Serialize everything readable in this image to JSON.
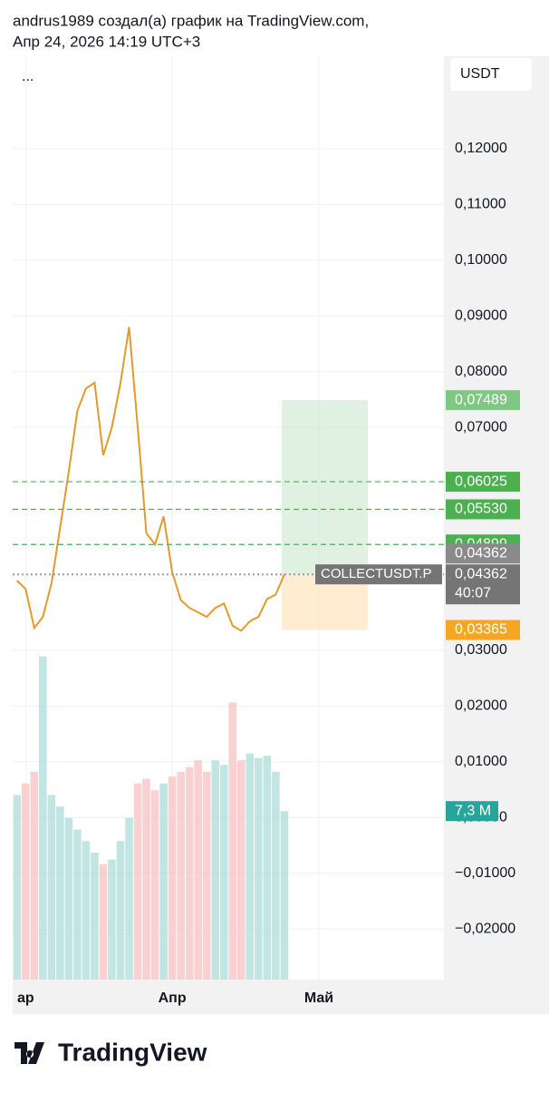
{
  "header": {
    "author_line": "andrus1989 создал(а) график на TradingView.com,",
    "date_line": "Апр 24, 2026 14:19 UTC+3"
  },
  "chart_data": {
    "type": "line",
    "menu": "...",
    "currency": "USDT",
    "categories": [
      null,
      "ар",
      null,
      null,
      null,
      null,
      null,
      null,
      null,
      null,
      null,
      null,
      null,
      null,
      null,
      null,
      null,
      null,
      "Апр",
      null,
      null,
      null,
      null,
      null,
      null,
      null,
      null,
      null,
      null,
      null,
      null,
      null,
      null,
      null,
      null,
      "Май",
      null,
      null,
      null,
      null,
      null,
      null,
      null,
      null,
      null,
      null,
      null,
      null,
      null,
      null
    ],
    "series": [
      {
        "name": "COLLECTUSDT.P",
        "color": "#e39a2d",
        "values": [
          0.0425,
          0.041,
          0.034,
          0.036,
          0.042,
          0.052,
          0.062,
          0.073,
          0.077,
          0.078,
          0.065,
          0.07,
          0.078,
          0.088,
          0.07,
          0.051,
          0.049,
          0.054,
          0.044,
          0.039,
          0.0376,
          0.0368,
          0.036,
          0.0376,
          0.0384,
          0.0344,
          0.0335,
          0.0352,
          0.036,
          0.0392,
          0.04,
          0.04362,
          null,
          null,
          null,
          null,
          null,
          null,
          null,
          null,
          null,
          null,
          null,
          null,
          null,
          null,
          null,
          null,
          null,
          null
        ]
      }
    ],
    "volume": {
      "values": [
        8,
        8.5,
        9,
        14,
        8,
        7.5,
        7,
        6.5,
        6,
        5.5,
        5,
        5.2,
        6,
        7,
        8.5,
        8.7,
        8.2,
        8.5,
        8.8,
        9,
        9.2,
        9.5,
        9,
        9.5,
        9.3,
        12,
        9.5,
        9.8,
        9.6,
        9.7,
        9,
        7.3
      ],
      "last_label": "7,3 M",
      "color_up": "#b2dfdb",
      "color_down": "#f7c5c5",
      "label_color": "#26a69a",
      "y2lim": [
        0,
        40
      ]
    },
    "ylim": [
      -0.0291,
      0.1366
    ],
    "yticks": [
      {
        "value": 0.12,
        "label": "0,12000"
      },
      {
        "value": 0.11,
        "label": "0,11000"
      },
      {
        "value": 0.1,
        "label": "0,10000"
      },
      {
        "value": 0.09,
        "label": "0,09000"
      },
      {
        "value": 0.08,
        "label": "0,08000"
      },
      {
        "value": 0.07,
        "label": "0,07000"
      },
      {
        "value": 0.03,
        "label": "0,03000"
      },
      {
        "value": 0.02,
        "label": "0,02000"
      },
      {
        "value": 0.01,
        "label": "0,01000"
      },
      {
        "value": 0,
        "label": "0,00000"
      },
      {
        "value": -0.01,
        "label": "−0,01000"
      },
      {
        "value": -0.02,
        "label": "−0,02000"
      }
    ],
    "grid": true,
    "markers": [
      {
        "value": 0.07489,
        "label": "0,07489",
        "color": "#81c784",
        "kind": "target"
      },
      {
        "value": 0.06025,
        "label": "0,06025",
        "color": "#4caf50",
        "kind": "level"
      },
      {
        "value": 0.0553,
        "label": "0,05530",
        "color": "#4caf50",
        "kind": "level"
      },
      {
        "value": 0.04899,
        "label": "0,04899",
        "color": "#4caf50",
        "kind": "level"
      },
      {
        "value": 0.04362,
        "label": "0,04362",
        "color": "#8a8a8a",
        "kind": "entry"
      },
      {
        "value": 0.04362,
        "label": "0,04362",
        "color": "#757575",
        "kind": "last",
        "countdown": "40:07"
      },
      {
        "value": 0.03365,
        "label": "0,03365",
        "color": "#f5a623",
        "kind": "stop"
      }
    ]
  },
  "footer": {
    "brand": "TradingView"
  }
}
